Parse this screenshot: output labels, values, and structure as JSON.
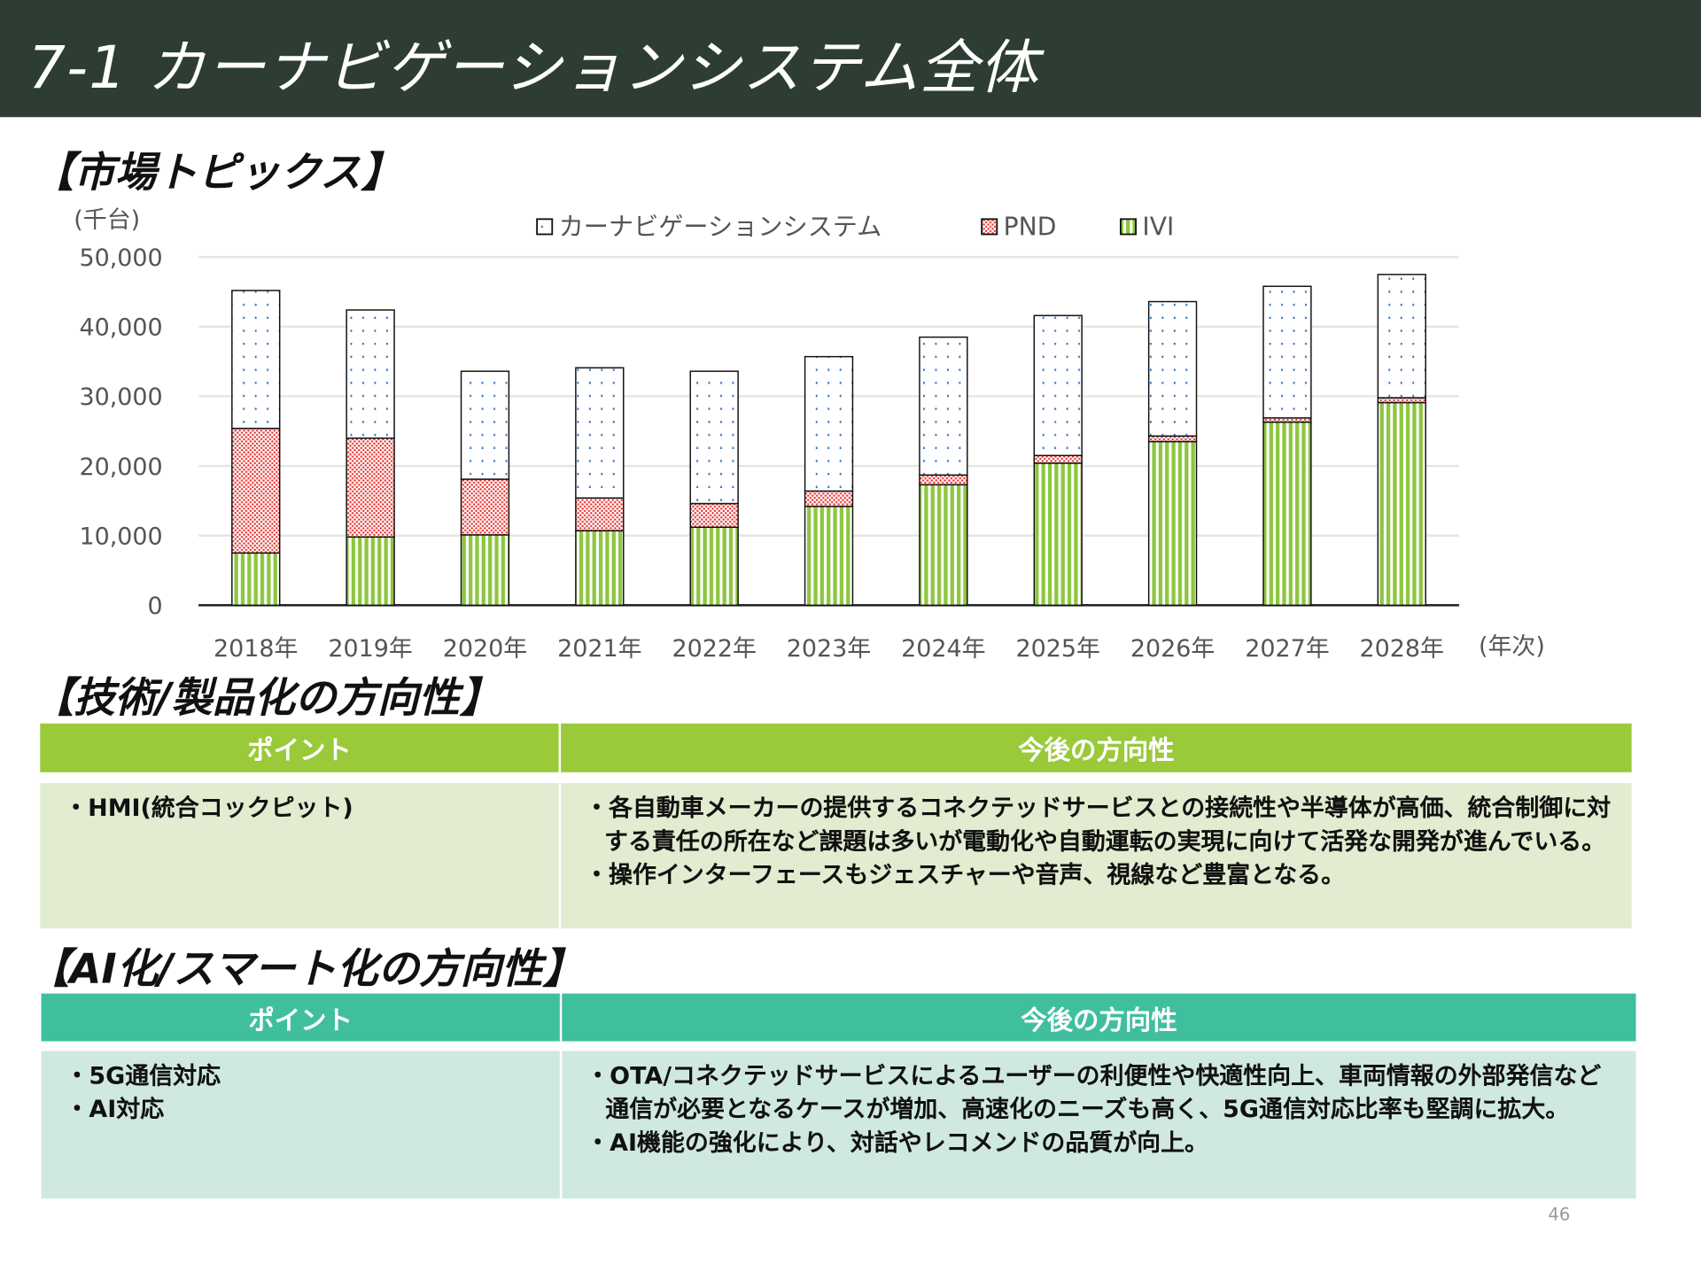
{
  "header": {
    "title": "7-1 カーナビゲーションシステム全体"
  },
  "section1": {
    "title": "【市場トピックス】"
  },
  "chart_data": {
    "type": "bar",
    "stacked": true,
    "unit_label": "(千台)",
    "x_axis_label": "(年次)",
    "categories": [
      "2018年",
      "2019年",
      "2020年",
      "2021年",
      "2022年",
      "2023年",
      "2024年",
      "2025年",
      "2026年",
      "2027年",
      "2028年"
    ],
    "ylim": [
      0,
      50000
    ],
    "y_ticks": [
      "0",
      "10,000",
      "20,000",
      "30,000",
      "40,000",
      "50,000"
    ],
    "y_tick_values": [
      0,
      10000,
      20000,
      30000,
      40000,
      50000
    ],
    "grid": true,
    "legend_position": "top",
    "series": [
      {
        "name": "IVI",
        "color": "#8dc63f",
        "pattern": "vertical-stripes",
        "values": [
          7500,
          9800,
          10100,
          10700,
          11200,
          14200,
          17300,
          20400,
          23500,
          26300,
          29100
        ]
      },
      {
        "name": "PND",
        "color": "#e53935",
        "pattern": "red-dots",
        "values": [
          17900,
          14200,
          8000,
          4700,
          3400,
          2200,
          1400,
          1100,
          800,
          600,
          700
        ]
      },
      {
        "name": "カーナビゲーションシステム",
        "color": "#2e6fc4",
        "pattern": "blue-dots",
        "values": [
          19800,
          18400,
          15500,
          18700,
          19000,
          19300,
          19800,
          20100,
          19300,
          18900,
          17700
        ]
      }
    ],
    "totals": [
      45200,
      42400,
      33600,
      34100,
      33600,
      35700,
      38500,
      41600,
      43600,
      45800,
      47500
    ]
  },
  "section2": {
    "title": "【技術/製品化の方向性】",
    "header": [
      "ポイント",
      "今後の方向性"
    ],
    "point": [
      "・HMI(統合コックピット)"
    ],
    "direction": [
      "・各自動車メーカーの提供するコネクテッドサービスとの接続性や半導体が高価、統合制御に対する責任の所在など課題は多いが電動化や自動運転の実現に向けて活発な開発が進んでいる。",
      "・操作インターフェースもジェスチャーや音声、視線など豊富となる。"
    ],
    "colors": {
      "header": "#9ac93a",
      "body": "#e2ecd0"
    }
  },
  "section3": {
    "title": "【AI化/スマート化の方向性】",
    "header": [
      "ポイント",
      "今後の方向性"
    ],
    "point": [
      "・5G通信対応",
      "・AI対応"
    ],
    "direction": [
      "・OTA/コネクテッドサービスによるユーザーの利便性や快適性向上、車両情報の外部発信など通信が必要となるケースが増加、高速化のニーズも高く、5G通信対応比率も堅調に拡大。",
      "・AI機能の強化により、対話やレコメンドの品質が向上。"
    ],
    "colors": {
      "header": "#40bf9f",
      "body": "#d0e9e0"
    }
  },
  "page_number": "46"
}
